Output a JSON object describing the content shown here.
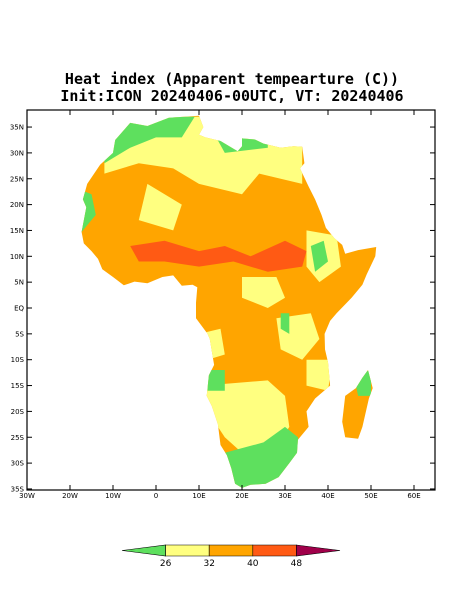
{
  "title": "Heat index (Apparent tempearture (C))",
  "subtitle": "Init:ICON 20240406-00UTC, VT: 20240406",
  "lat_ticks": [
    {
      "value": 35,
      "label": "35N"
    },
    {
      "value": 30,
      "label": "30N"
    },
    {
      "value": 25,
      "label": "25N"
    },
    {
      "value": 20,
      "label": "20N"
    },
    {
      "value": 15,
      "label": "15N"
    },
    {
      "value": 10,
      "label": "10N"
    },
    {
      "value": 5,
      "label": "5N"
    },
    {
      "value": 0,
      "label": "EQ"
    },
    {
      "value": -5,
      "label": "5S"
    },
    {
      "value": -10,
      "label": "10S"
    },
    {
      "value": -15,
      "label": "15S"
    },
    {
      "value": -20,
      "label": "20S"
    },
    {
      "value": -25,
      "label": "25S"
    },
    {
      "value": -30,
      "label": "30S"
    },
    {
      "value": -35,
      "label": "35S"
    }
  ],
  "lon_ticks": [
    {
      "value": -30,
      "label": "30W"
    },
    {
      "value": -20,
      "label": "20W"
    },
    {
      "value": -10,
      "label": "10W"
    },
    0,
    {
      "value": 10,
      "label": "10E"
    },
    {
      "value": 20,
      "label": "20E"
    },
    {
      "value": 30,
      "label": "30E"
    },
    {
      "value": 40,
      "label": "40E"
    },
    {
      "value": 50,
      "label": "50E"
    },
    {
      "value": 60,
      "label": "60E"
    }
  ],
  "colorbar": {
    "levels": [
      26,
      32,
      40,
      48
    ],
    "colors": [
      "#5ee05e",
      "#ffff80",
      "#ffa500",
      "#ff5a14",
      "#a0004a"
    ]
  }
}
